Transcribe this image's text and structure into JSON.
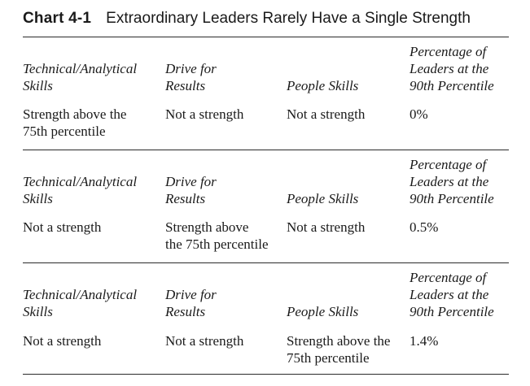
{
  "header": {
    "chart_number": "Chart 4-1",
    "chart_title": "Extraordinary Leaders Rarely Have a Single Strength"
  },
  "column_headers": {
    "technical_line1": "Technical/Analytical",
    "technical_line2": "Skills",
    "drive_line1": "Drive for",
    "drive_line2": "Results",
    "people": "People Skills",
    "percentage": "Percentage of\nLeaders at the\n90th Percentile"
  },
  "sections": [
    {
      "technical": "Strength above the\n  75th percentile",
      "drive": "Not a strength",
      "people": "Not a strength",
      "percentage": "0%"
    },
    {
      "technical": "Not a strength",
      "drive": "Strength above\nthe 75th percentile",
      "people": "Not a strength",
      "percentage": "0.5%"
    },
    {
      "technical": "Not a strength",
      "drive": "Not a strength",
      "people": "Strength above the\n75th percentile",
      "percentage": "1.4%"
    }
  ]
}
